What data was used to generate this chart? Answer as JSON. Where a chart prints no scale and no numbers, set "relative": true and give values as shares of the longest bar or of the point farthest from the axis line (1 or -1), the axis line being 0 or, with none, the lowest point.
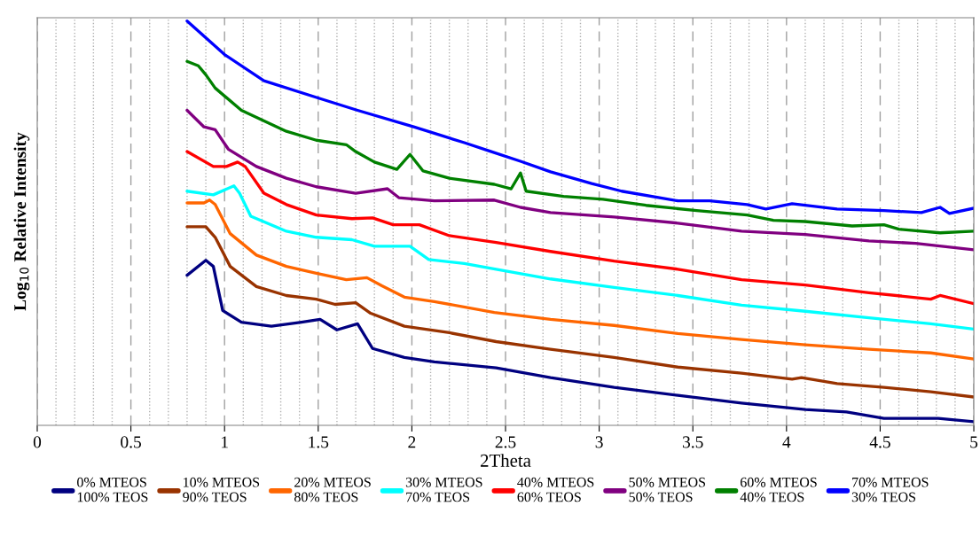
{
  "chart_data": {
    "type": "line",
    "relative": true,
    "xlabel": "2Theta",
    "ylabel": "Log$_{10}$ Relative Intensity",
    "xlim": [
      0,
      5
    ],
    "xticks": [
      0,
      {
        "value": 0.1,
        "label": null
      },
      {
        "value": 0.2,
        "label": null
      },
      {
        "value": 0.3,
        "label": null
      },
      {
        "value": 0.4,
        "label": null
      },
      0.5,
      {
        "value": 0.6,
        "label": null
      },
      {
        "value": 0.7,
        "label": null
      },
      {
        "value": 0.8,
        "label": null
      },
      {
        "value": 0.9,
        "label": null
      },
      1,
      {
        "value": 1.1,
        "label": null
      },
      {
        "value": 1.2,
        "label": null
      },
      {
        "value": 1.3,
        "label": null
      },
      {
        "value": 1.4,
        "label": null
      },
      1.5,
      {
        "value": 1.6,
        "label": null
      },
      {
        "value": 1.7,
        "label": null
      },
      {
        "value": 1.8,
        "label": null
      },
      {
        "value": 1.9,
        "label": null
      },
      2,
      {
        "value": 2.1,
        "label": null
      },
      {
        "value": 2.2,
        "label": null
      },
      {
        "value": 2.3,
        "label": null
      },
      {
        "value": 2.4,
        "label": null
      },
      2.5,
      {
        "value": 2.6,
        "label": null
      },
      {
        "value": 2.7,
        "label": null
      },
      {
        "value": 2.8,
        "label": null
      },
      {
        "value": 2.9,
        "label": null
      },
      3,
      {
        "value": 3.1,
        "label": null
      },
      {
        "value": 3.2,
        "label": null
      },
      {
        "value": 3.3,
        "label": null
      },
      {
        "value": 3.4,
        "label": null
      },
      3.5,
      {
        "value": 3.6,
        "label": null
      },
      {
        "value": 3.7,
        "label": null
      },
      {
        "value": 3.8,
        "label": null
      },
      {
        "value": 3.9,
        "label": null
      },
      4,
      {
        "value": 4.1,
        "label": null
      },
      {
        "value": 4.2,
        "label": null
      },
      {
        "value": 4.3,
        "label": null
      },
      {
        "value": 4.4,
        "label": null
      },
      4.5,
      {
        "value": 4.6,
        "label": null
      },
      {
        "value": 4.7,
        "label": null
      },
      {
        "value": 4.8,
        "label": null
      },
      {
        "value": 4.9,
        "label": null
      },
      5
    ],
    "grid": "x",
    "legend": "bottom",
    "marker": "none",
    "line_style": "solid",
    "series": [
      {
        "name": "0% MTEOS\n100% TEOS",
        "color": "#000080",
        "x": [
          0.8,
          0.9,
          0.94,
          0.99,
          1.09,
          1.25,
          1.41,
          1.51,
          1.6,
          1.71,
          1.79,
          1.96,
          2.12,
          2.45,
          2.74,
          3.08,
          3.42,
          3.76,
          4.1,
          4.32,
          4.52,
          4.81,
          5.0
        ],
        "values": [
          0.371,
          0.408,
          0.393,
          0.284,
          0.255,
          0.245,
          0.255,
          0.262,
          0.236,
          0.251,
          0.19,
          0.168,
          0.157,
          0.142,
          0.118,
          0.094,
          0.074,
          0.055,
          0.039,
          0.033,
          0.017,
          0.017,
          0.009
        ]
      },
      {
        "name": "10% MTEOS\n90% TEOS",
        "color": "#993300",
        "x": [
          0.8,
          0.9,
          0.95,
          1.03,
          1.17,
          1.33,
          1.49,
          1.59,
          1.7,
          1.78,
          1.96,
          2.2,
          2.45,
          2.74,
          3.08,
          3.42,
          3.76,
          4.03,
          4.08,
          4.27,
          4.52,
          4.77,
          5.0
        ],
        "values": [
          0.491,
          0.491,
          0.465,
          0.393,
          0.343,
          0.321,
          0.312,
          0.299,
          0.303,
          0.277,
          0.245,
          0.229,
          0.207,
          0.188,
          0.168,
          0.144,
          0.129,
          0.114,
          0.118,
          0.103,
          0.094,
          0.083,
          0.07
        ]
      },
      {
        "name": "20% MTEOS\n80% TEOS",
        "color": "#ff6600",
        "x": [
          0.8,
          0.89,
          0.92,
          0.95,
          1.03,
          1.17,
          1.33,
          1.49,
          1.65,
          1.76,
          1.84,
          1.96,
          2.12,
          2.44,
          2.74,
          3.08,
          3.42,
          3.76,
          4.1,
          4.44,
          4.77,
          5.0
        ],
        "values": [
          0.55,
          0.55,
          0.557,
          0.546,
          0.474,
          0.421,
          0.393,
          0.376,
          0.36,
          0.365,
          0.345,
          0.317,
          0.306,
          0.279,
          0.262,
          0.247,
          0.227,
          0.212,
          0.199,
          0.188,
          0.179,
          0.164
        ]
      },
      {
        "name": "30% MTEOS\n70% TEOS",
        "color": "#00ffff",
        "x": [
          0.8,
          0.94,
          1.05,
          1.08,
          1.14,
          1.33,
          1.49,
          1.68,
          1.8,
          1.99,
          2.09,
          2.28,
          2.45,
          2.74,
          3.08,
          3.42,
          3.76,
          4.1,
          4.44,
          4.77,
          5.0
        ],
        "values": [
          0.579,
          0.57,
          0.592,
          0.574,
          0.517,
          0.48,
          0.465,
          0.459,
          0.443,
          0.443,
          0.41,
          0.4,
          0.386,
          0.362,
          0.341,
          0.321,
          0.297,
          0.282,
          0.266,
          0.251,
          0.238
        ]
      },
      {
        "name": "40% MTEOS\n60% TEOS",
        "color": "#ff0000",
        "x": [
          0.8,
          0.94,
          1.01,
          1.07,
          1.11,
          1.21,
          1.33,
          1.49,
          1.68,
          1.79,
          1.9,
          2.04,
          2.2,
          2.45,
          2.74,
          3.08,
          3.42,
          3.76,
          4.1,
          4.44,
          4.77,
          4.82,
          5.0
        ],
        "values": [
          0.677,
          0.64,
          0.64,
          0.651,
          0.64,
          0.574,
          0.546,
          0.52,
          0.511,
          0.513,
          0.496,
          0.496,
          0.469,
          0.452,
          0.43,
          0.406,
          0.386,
          0.36,
          0.347,
          0.328,
          0.312,
          0.321,
          0.301
        ]
      },
      {
        "name": "50% MTEOS\n50% TEOS",
        "color": "#800080",
        "x": [
          0.8,
          0.89,
          0.95,
          1.02,
          1.17,
          1.33,
          1.49,
          1.7,
          1.87,
          1.93,
          2.12,
          2.44,
          2.58,
          2.74,
          3.08,
          3.42,
          3.76,
          4.1,
          4.44,
          4.69,
          5.0
        ],
        "values": [
          0.779,
          0.738,
          0.731,
          0.683,
          0.64,
          0.611,
          0.59,
          0.574,
          0.585,
          0.563,
          0.555,
          0.557,
          0.539,
          0.526,
          0.515,
          0.5,
          0.48,
          0.472,
          0.456,
          0.45,
          0.434
        ]
      },
      {
        "name": "60% MTEOS\n40% TEOS",
        "color": "#008000",
        "x": [
          0.8,
          0.86,
          0.9,
          0.95,
          1.09,
          1.33,
          1.49,
          1.65,
          1.7,
          1.8,
          1.92,
          1.99,
          2.06,
          2.2,
          2.44,
          2.53,
          2.58,
          2.61,
          2.81,
          3.02,
          3.25,
          3.52,
          3.79,
          3.93,
          4.1,
          4.35,
          4.52,
          4.6,
          4.82,
          5.0
        ],
        "values": [
          0.9,
          0.889,
          0.867,
          0.834,
          0.779,
          0.727,
          0.705,
          0.694,
          0.677,
          0.651,
          0.633,
          0.67,
          0.629,
          0.611,
          0.596,
          0.585,
          0.624,
          0.579,
          0.566,
          0.559,
          0.544,
          0.531,
          0.52,
          0.507,
          0.504,
          0.493,
          0.496,
          0.485,
          0.476,
          0.48
        ]
      },
      {
        "name": "70% MTEOS\n30% TEOS",
        "color": "#0000ff",
        "x": [
          0.8,
          1.0,
          1.21,
          1.51,
          1.71,
          2.01,
          2.28,
          2.41,
          2.58,
          2.74,
          2.96,
          3.12,
          3.42,
          3.59,
          3.79,
          3.89,
          4.03,
          4.27,
          4.52,
          4.72,
          4.82,
          4.87,
          5.0
        ],
        "values": [
          1.0,
          0.917,
          0.852,
          0.808,
          0.779,
          0.738,
          0.699,
          0.679,
          0.653,
          0.627,
          0.598,
          0.579,
          0.555,
          0.555,
          0.546,
          0.535,
          0.548,
          0.535,
          0.531,
          0.526,
          0.539,
          0.524,
          0.537
        ]
      }
    ]
  }
}
